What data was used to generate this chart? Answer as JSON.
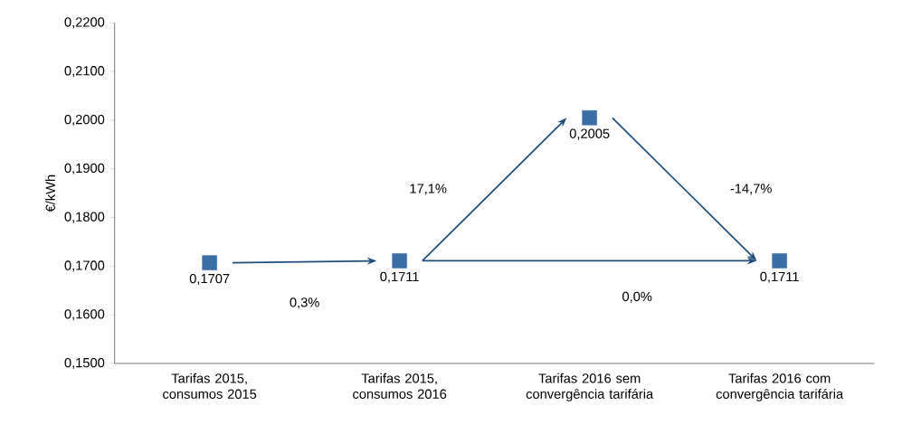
{
  "chart_data": {
    "type": "scatter",
    "ylabel": "€/kWh",
    "categories": [
      "Tarifas 2015, consumos 2015",
      "Tarifas 2015, consumos 2016",
      "Tarifas 2016 sem convergência tarifária",
      "Tarifas 2016 com convergência tarifária"
    ],
    "values": [
      0.1707,
      0.1711,
      0.2005,
      0.1711
    ],
    "value_labels": [
      "0,1707",
      "0,1711",
      "0,2005",
      "0,1711"
    ],
    "color": "#3a6ea5",
    "marker": "square",
    "ylim": [
      0.15,
      0.22
    ],
    "yticks": [
      {
        "value": 0.15,
        "label": "0,1500"
      },
      {
        "value": 0.16,
        "label": "0,1600"
      },
      {
        "value": 0.17,
        "label": "0,1700"
      },
      {
        "value": 0.18,
        "label": "0,1800"
      },
      {
        "value": 0.19,
        "label": "0,1900"
      },
      {
        "value": 0.2,
        "label": "0,2000"
      },
      {
        "value": 0.21,
        "label": "0,2100"
      },
      {
        "value": 0.22,
        "label": "0,2200"
      }
    ],
    "annotations": [
      "0,3%",
      "17,1%",
      "-14,7%",
      "0,0%"
    ],
    "grid": false
  }
}
